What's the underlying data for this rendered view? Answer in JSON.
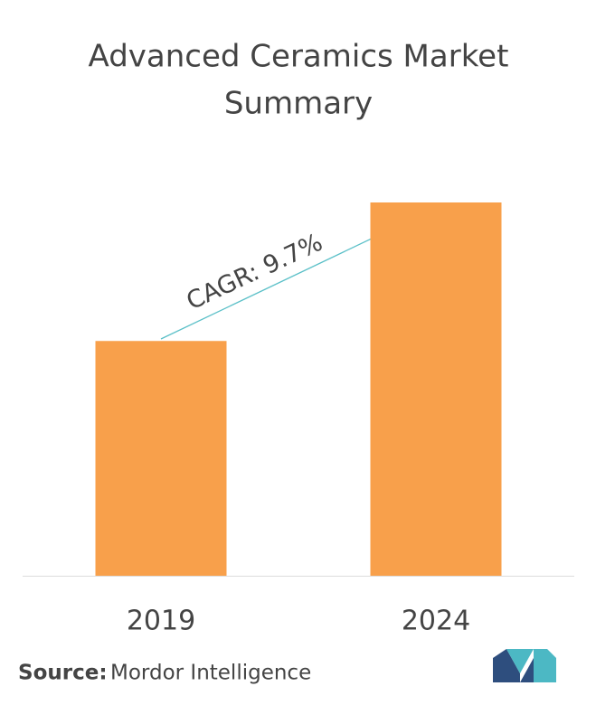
{
  "chart_data": {
    "type": "bar",
    "title": [
      "Advanced Ceramics Market",
      "Summary"
    ],
    "categories": [
      "2019",
      "2024"
    ],
    "values": [
      100,
      159
    ],
    "color": "#f8a04b",
    "annotation": "CAGR: 9.7%",
    "source_label": "Source:",
    "source": "Mordor Intelligence"
  }
}
